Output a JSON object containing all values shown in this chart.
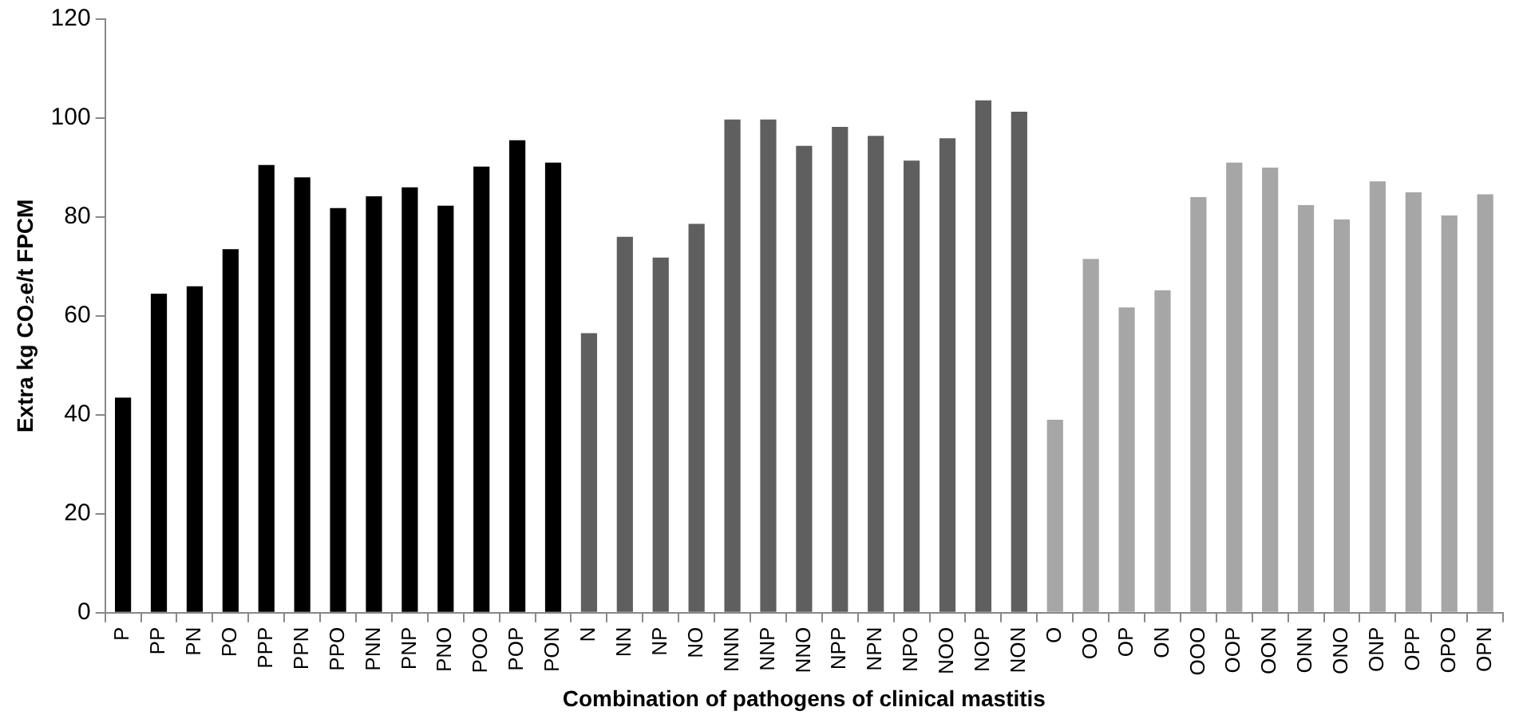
{
  "chart_data": {
    "type": "bar",
    "xlabel": "Combination of pathogens of clinical mastitis",
    "ylabel": "Extra kg CO₂e/t FPCM",
    "categories": [
      "P",
      "PP",
      "PN",
      "PO",
      "PPP",
      "PPN",
      "PPO",
      "PNN",
      "PNP",
      "PNO",
      "POO",
      "POP",
      "PON",
      "N",
      "NN",
      "NP",
      "NO",
      "NNN",
      "NNP",
      "NNO",
      "NPP",
      "NPN",
      "NPO",
      "NOO",
      "NOP",
      "NON",
      "O",
      "OO",
      "OP",
      "ON",
      "OOO",
      "OOP",
      "OON",
      "ONN",
      "ONO",
      "ONP",
      "OPP",
      "OPO",
      "OPN"
    ],
    "values": [
      43.5,
      64.5,
      66,
      73.5,
      90.5,
      88,
      81.8,
      84.2,
      86,
      82.3,
      90.2,
      95.5,
      91,
      56.5,
      76,
      71.8,
      78.6,
      99.7,
      99.7,
      94.4,
      98.2,
      96.4,
      91.4,
      95.9,
      103.6,
      101.3,
      39,
      71.5,
      61.7,
      65.2,
      84,
      91,
      90,
      82.4,
      79.5,
      87.2,
      85,
      80.3,
      84.6
    ],
    "colors": [
      "#000000",
      "#000000",
      "#000000",
      "#000000",
      "#000000",
      "#000000",
      "#000000",
      "#000000",
      "#000000",
      "#000000",
      "#000000",
      "#000000",
      "#000000",
      "#5f5f5f",
      "#5f5f5f",
      "#5f5f5f",
      "#5f5f5f",
      "#5f5f5f",
      "#5f5f5f",
      "#5f5f5f",
      "#5f5f5f",
      "#5f5f5f",
      "#5f5f5f",
      "#5f5f5f",
      "#5f5f5f",
      "#5f5f5f",
      "#a6a6a6",
      "#a6a6a6",
      "#a6a6a6",
      "#a6a6a6",
      "#a6a6a6",
      "#a6a6a6",
      "#a6a6a6",
      "#a6a6a6",
      "#a6a6a6",
      "#a6a6a6",
      "#a6a6a6",
      "#a6a6a6",
      "#a6a6a6"
    ],
    "ylim": [
      0,
      120
    ],
    "yticks": [
      0,
      20,
      40,
      60,
      80,
      100,
      120
    ],
    "grid": false,
    "legend": false
  }
}
